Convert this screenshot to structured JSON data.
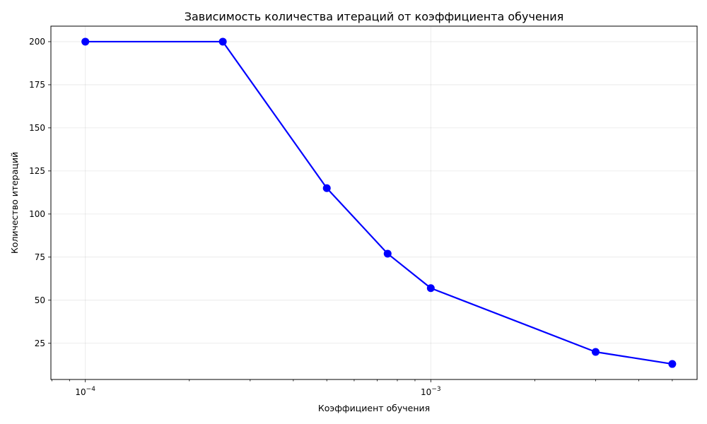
{
  "chart_data": {
    "type": "line",
    "title": "Зависимость количества итераций от коэффициента обучения",
    "xlabel": "Коэффициент обучения",
    "ylabel": "Количество итераций",
    "x_scale": "log",
    "xlim": [
      7.95e-05,
      0.0059
    ],
    "ylim": [
      4,
      209
    ],
    "x_major_ticks": [
      {
        "value": 0.0001,
        "base": "10",
        "exp": "−4"
      },
      {
        "value": 0.001,
        "base": "10",
        "exp": "−3"
      }
    ],
    "y_ticks": [
      25,
      50,
      75,
      100,
      125,
      150,
      175,
      200
    ],
    "grid": true,
    "series": [
      {
        "color": "#0000ff",
        "marker": "circle",
        "x": [
          0.0001,
          0.00025,
          0.0005,
          0.00075,
          0.001,
          0.003,
          0.005
        ],
        "y": [
          200,
          200,
          115,
          77,
          57,
          20,
          13
        ]
      }
    ]
  }
}
